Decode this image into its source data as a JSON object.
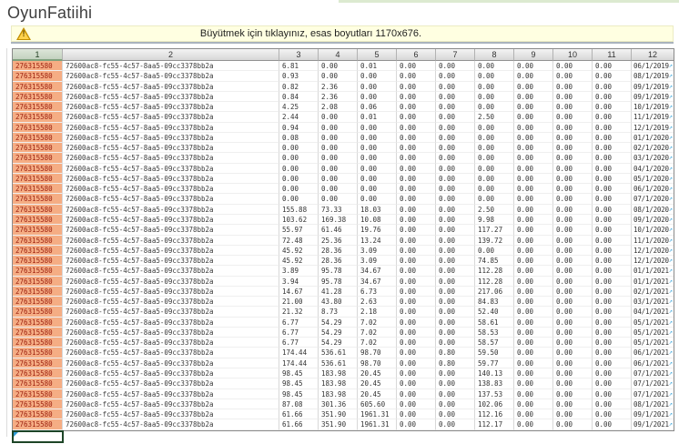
{
  "page": {
    "title": "OyunFatiihi"
  },
  "warning": {
    "text": "Büyütmek için tıklayınız, esas boyutları 1170x676.",
    "icon": "warning-triangle-icon",
    "original_size": "1170x676"
  },
  "colors": {
    "id_cell_bg": "#f5ad84",
    "id_cell_text": "#9c1f0e",
    "selected_header_bg": "#c3d1bf",
    "warning_bg": "#ffffe1",
    "warning_icon_yellow": "#ffd24d",
    "link_arrow_blue": "#3fa7dc",
    "selection_border_green": "#1d4527",
    "top_strip_green": "#dcead0"
  },
  "table": {
    "headers": [
      "1",
      "2",
      "3",
      "4",
      "5",
      "6",
      "7",
      "8",
      "9",
      "10",
      "11",
      "12"
    ],
    "id_value": "276315580",
    "guid_value": "72600ac8-fc55-4c57-8aa5-09cc3378bb2a",
    "link_arrow_icon": "↗",
    "rows": [
      [
        "6.81",
        "0.00",
        "0.01",
        "0.00",
        "0.00",
        "0.00",
        "0.00",
        "0.00",
        "0.00",
        "06/1/2019"
      ],
      [
        "0.93",
        "0.00",
        "0.00",
        "0.00",
        "0.00",
        "0.00",
        "0.00",
        "0.00",
        "0.00",
        "08/1/2019"
      ],
      [
        "0.82",
        "2.36",
        "0.00",
        "0.00",
        "0.00",
        "0.00",
        "0.00",
        "0.00",
        "0.00",
        "09/1/2019"
      ],
      [
        "0.84",
        "2.36",
        "0.00",
        "0.00",
        "0.00",
        "0.00",
        "0.00",
        "0.00",
        "0.00",
        "09/1/2019"
      ],
      [
        "4.25",
        "2.08",
        "0.06",
        "0.00",
        "0.00",
        "0.00",
        "0.00",
        "0.00",
        "0.00",
        "10/1/2019"
      ],
      [
        "2.44",
        "0.00",
        "0.01",
        "0.00",
        "0.00",
        "2.50",
        "0.00",
        "0.00",
        "0.00",
        "11/1/2019"
      ],
      [
        "0.94",
        "0.00",
        "0.00",
        "0.00",
        "0.00",
        "0.00",
        "0.00",
        "0.00",
        "0.00",
        "12/1/2019"
      ],
      [
        "0.08",
        "0.00",
        "0.00",
        "0.00",
        "0.00",
        "0.00",
        "0.00",
        "0.00",
        "0.00",
        "01/1/2020"
      ],
      [
        "0.00",
        "0.00",
        "0.00",
        "0.00",
        "0.00",
        "0.00",
        "0.00",
        "0.00",
        "0.00",
        "02/1/2020"
      ],
      [
        "0.00",
        "0.00",
        "0.00",
        "0.00",
        "0.00",
        "0.00",
        "0.00",
        "0.00",
        "0.00",
        "03/1/2020"
      ],
      [
        "0.00",
        "0.00",
        "0.00",
        "0.00",
        "0.00",
        "0.00",
        "0.00",
        "0.00",
        "0.00",
        "04/1/2020"
      ],
      [
        "0.00",
        "0.00",
        "0.00",
        "0.00",
        "0.00",
        "0.00",
        "0.00",
        "0.00",
        "0.00",
        "05/1/2020"
      ],
      [
        "0.00",
        "0.00",
        "0.00",
        "0.00",
        "0.00",
        "0.00",
        "0.00",
        "0.00",
        "0.00",
        "06/1/2020"
      ],
      [
        "0.00",
        "0.00",
        "0.00",
        "0.00",
        "0.00",
        "0.00",
        "0.00",
        "0.00",
        "0.00",
        "07/1/2020"
      ],
      [
        "155.88",
        "73.33",
        "18.03",
        "0.00",
        "0.00",
        "2.50",
        "0.00",
        "0.00",
        "0.00",
        "08/1/2020"
      ],
      [
        "103.62",
        "169.38",
        "10.08",
        "0.00",
        "0.00",
        "9.98",
        "0.00",
        "0.00",
        "0.00",
        "09/1/2020"
      ],
      [
        "55.97",
        "61.46",
        "19.76",
        "0.00",
        "0.00",
        "117.27",
        "0.00",
        "0.00",
        "0.00",
        "10/1/2020"
      ],
      [
        "72.48",
        "25.36",
        "13.24",
        "0.00",
        "0.00",
        "139.72",
        "0.00",
        "0.00",
        "0.00",
        "11/1/2020"
      ],
      [
        "45.92",
        "28.36",
        "3.09",
        "0.00",
        "0.00",
        "0.00",
        "0.00",
        "0.00",
        "0.00",
        "12/1/2020"
      ],
      [
        "45.92",
        "28.36",
        "3.09",
        "0.00",
        "0.00",
        "74.85",
        "0.00",
        "0.00",
        "0.00",
        "12/1/2020"
      ],
      [
        "3.89",
        "95.78",
        "34.67",
        "0.00",
        "0.00",
        "112.28",
        "0.00",
        "0.00",
        "0.00",
        "01/1/2021"
      ],
      [
        "3.94",
        "95.78",
        "34.67",
        "0.00",
        "0.00",
        "112.28",
        "0.00",
        "0.00",
        "0.00",
        "01/1/2021"
      ],
      [
        "14.67",
        "41.28",
        "6.73",
        "0.00",
        "0.00",
        "217.06",
        "0.00",
        "0.00",
        "0.00",
        "02/1/2021"
      ],
      [
        "21.00",
        "43.80",
        "2.63",
        "0.00",
        "0.00",
        "84.83",
        "0.00",
        "0.00",
        "0.00",
        "03/1/2021"
      ],
      [
        "21.32",
        "8.73",
        "2.18",
        "0.00",
        "0.00",
        "52.40",
        "0.00",
        "0.00",
        "0.00",
        "04/1/2021"
      ],
      [
        "6.77",
        "54.29",
        "7.02",
        "0.00",
        "0.00",
        "58.61",
        "0.00",
        "0.00",
        "0.00",
        "05/1/2021"
      ],
      [
        "6.77",
        "54.29",
        "7.02",
        "0.00",
        "0.00",
        "58.53",
        "0.00",
        "0.00",
        "0.00",
        "05/1/2021"
      ],
      [
        "6.77",
        "54.29",
        "7.02",
        "0.00",
        "0.00",
        "58.57",
        "0.00",
        "0.00",
        "0.00",
        "05/1/2021"
      ],
      [
        "174.44",
        "536.61",
        "98.70",
        "0.00",
        "0.80",
        "59.50",
        "0.00",
        "0.00",
        "0.00",
        "06/1/2021"
      ],
      [
        "174.44",
        "536.61",
        "98.70",
        "0.00",
        "0.80",
        "59.77",
        "0.00",
        "0.00",
        "0.00",
        "06/1/2021"
      ],
      [
        "98.45",
        "183.98",
        "20.45",
        "0.00",
        "0.00",
        "140.13",
        "0.00",
        "0.00",
        "0.00",
        "07/1/2021"
      ],
      [
        "98.45",
        "183.98",
        "20.45",
        "0.00",
        "0.00",
        "138.83",
        "0.00",
        "0.00",
        "0.00",
        "07/1/2021"
      ],
      [
        "98.45",
        "183.98",
        "20.45",
        "0.00",
        "0.00",
        "137.53",
        "0.00",
        "0.00",
        "0.00",
        "07/1/2021"
      ],
      [
        "87.08",
        "301.36",
        "605.60",
        "0.00",
        "0.00",
        "102.06",
        "0.00",
        "0.00",
        "0.00",
        "08/1/2021"
      ],
      [
        "61.66",
        "351.90",
        "1961.31",
        "0.00",
        "0.00",
        "112.16",
        "0.00",
        "0.00",
        "0.00",
        "09/1/2021"
      ],
      [
        "61.66",
        "351.90",
        "1961.31",
        "0.00",
        "0.00",
        "112.17",
        "0.00",
        "0.00",
        "0.00",
        "09/1/2021"
      ]
    ]
  }
}
